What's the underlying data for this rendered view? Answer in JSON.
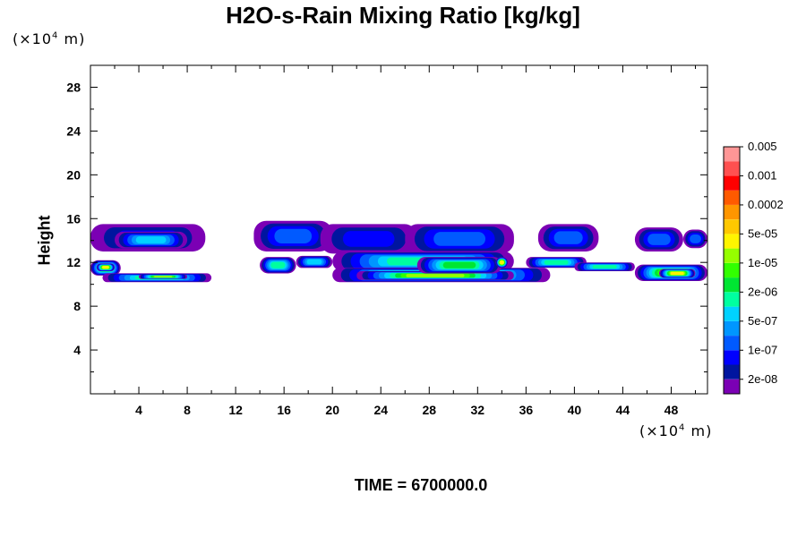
{
  "chart_data": {
    "type": "heatmap",
    "title": "H2O-s-Rain Mixing Ratio [kg/kg]",
    "ylabel": "Height",
    "y_units_prefix": "(×10",
    "y_units_exp": "4",
    "y_units_suffix": " m)",
    "x_units_prefix": "(×10",
    "x_units_exp": "4",
    "x_units_suffix": " m)",
    "xlim": [
      0,
      51
    ],
    "ylim": [
      0,
      30
    ],
    "x_ticks": [
      "4",
      "8",
      "12",
      "16",
      "20",
      "24",
      "28",
      "32",
      "36",
      "40",
      "44",
      "48"
    ],
    "x_tick_values": [
      4,
      8,
      12,
      16,
      20,
      24,
      28,
      32,
      36,
      40,
      44,
      48
    ],
    "y_ticks": [
      "4",
      "8",
      "12",
      "16",
      "20",
      "24",
      "28"
    ],
    "y_tick_values": [
      4,
      8,
      12,
      16,
      20,
      24,
      28
    ],
    "colorbar": {
      "colors": [
        "#7b00b4",
        "#00159f",
        "#0000ff",
        "#005aff",
        "#0096ff",
        "#00d2ff",
        "#00ffa0",
        "#00e632",
        "#32ff00",
        "#96ff00",
        "#fff500",
        "#ffc800",
        "#ff9600",
        "#ff5a00",
        "#ff0000",
        "#ff5050",
        "#ff9696"
      ],
      "labels": [
        "2e-08",
        "1e-07",
        "5e-07",
        "2e-06",
        "1e-05",
        "5e-05",
        "0.0002",
        "0.001",
        "0.005"
      ]
    },
    "regions": [
      {
        "x": [
          0,
          9.5
        ],
        "y": [
          13.0,
          15.5
        ],
        "level": 2
      },
      {
        "x": [
          2,
          8
        ],
        "y": [
          13.3,
          14.8
        ],
        "level": 5
      },
      {
        "x": [
          0,
          2.5
        ],
        "y": [
          10.8,
          12.2
        ],
        "level": 8
      },
      {
        "x": [
          0.5,
          2
        ],
        "y": [
          11.2,
          11.9
        ],
        "level": 10
      },
      {
        "x": [
          1,
          10
        ],
        "y": [
          10.2,
          11.0
        ],
        "level": 6
      },
      {
        "x": [
          4,
          8
        ],
        "y": [
          10.5,
          10.9
        ],
        "level": 9
      },
      {
        "x": [
          13.5,
          20
        ],
        "y": [
          13.0,
          15.8
        ],
        "level": 3
      },
      {
        "x": [
          19,
          27
        ],
        "y": [
          12.8,
          15.5
        ],
        "level": 2
      },
      {
        "x": [
          26,
          35
        ],
        "y": [
          12.8,
          15.5
        ],
        "level": 3
      },
      {
        "x": [
          20,
          35
        ],
        "y": [
          11.2,
          13.0
        ],
        "level": 6
      },
      {
        "x": [
          20,
          38
        ],
        "y": [
          10.2,
          11.5
        ],
        "level": 8
      },
      {
        "x": [
          22,
          35
        ],
        "y": [
          10.4,
          11.2
        ],
        "level": 9
      },
      {
        "x": [
          27,
          34
        ],
        "y": [
          11.0,
          12.5
        ],
        "level": 7
      },
      {
        "x": [
          33.5,
          34.5
        ],
        "y": [
          11.5,
          12.5
        ],
        "level": 10
      },
      {
        "x": [
          37,
          42
        ],
        "y": [
          13.0,
          15.5
        ],
        "level": 3
      },
      {
        "x": [
          45,
          49
        ],
        "y": [
          13.0,
          15.2
        ],
        "level": 3
      },
      {
        "x": [
          49,
          51
        ],
        "y": [
          13.3,
          15.0
        ],
        "level": 3
      },
      {
        "x": [
          36,
          41
        ],
        "y": [
          11.5,
          12.5
        ],
        "level": 6
      },
      {
        "x": [
          40,
          45
        ],
        "y": [
          11.2,
          12.0
        ],
        "level": 6
      },
      {
        "x": [
          45,
          51
        ],
        "y": [
          10.3,
          11.8
        ],
        "level": 8
      },
      {
        "x": [
          47,
          50
        ],
        "y": [
          10.6,
          11.4
        ],
        "level": 10
      },
      {
        "x": [
          14,
          17
        ],
        "y": [
          11.0,
          12.5
        ],
        "level": 6
      },
      {
        "x": [
          17,
          20
        ],
        "y": [
          11.5,
          12.6
        ],
        "level": 5
      }
    ]
  },
  "time_label": "TIME = 6700000.0"
}
